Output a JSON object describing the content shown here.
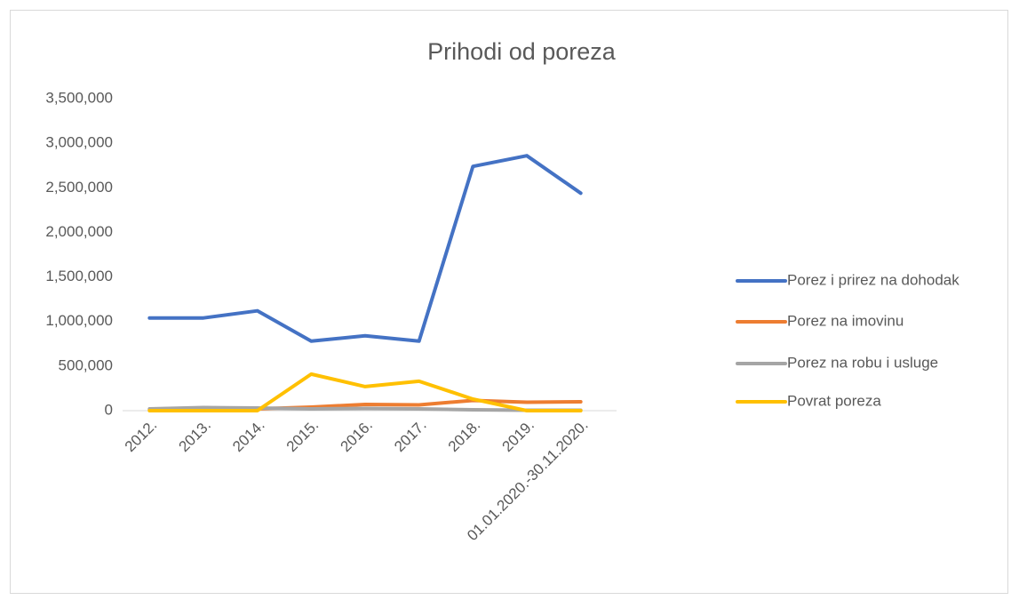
{
  "chart_data": {
    "type": "line",
    "title": "Prihodi od poreza",
    "categories": [
      "2012.",
      "2013.",
      "2014.",
      "2015.",
      "2016.",
      "2017.",
      "2018.",
      "2019.",
      "01.01.2020.-30.11.2020."
    ],
    "series": [
      {
        "name": "Porez i prirez na dohodak",
        "color": "#4472c4",
        "values": [
          1040000,
          1040000,
          1120000,
          780000,
          840000,
          780000,
          2740000,
          2860000,
          2440000
        ]
      },
      {
        "name": "Porez na imovinu",
        "color": "#ed7d31",
        "values": [
          10000,
          15000,
          20000,
          40000,
          70000,
          65000,
          115000,
          95000,
          100000
        ]
      },
      {
        "name": "Porez na robu i usluge",
        "color": "#a5a5a5",
        "values": [
          20000,
          35000,
          30000,
          20000,
          25000,
          20000,
          10000,
          5000,
          5000
        ]
      },
      {
        "name": "Povrat poreza",
        "color": "#ffc000",
        "values": [
          0,
          0,
          0,
          410000,
          270000,
          330000,
          130000,
          0,
          0
        ]
      }
    ],
    "ylim": [
      0,
      3500000
    ],
    "yticks": [
      0,
      {
        "value": 500000,
        "label": "500,000"
      },
      {
        "value": 1000000,
        "label": "1,000,000"
      },
      {
        "value": 1500000,
        "label": "1,500,000"
      },
      {
        "value": 2000000,
        "label": "2,000,000"
      },
      {
        "value": 2500000,
        "label": "2,500,000"
      },
      {
        "value": 3000000,
        "label": "3,000,000"
      },
      {
        "value": 3500000,
        "label": "3,500,000"
      }
    ],
    "legend": "right"
  }
}
